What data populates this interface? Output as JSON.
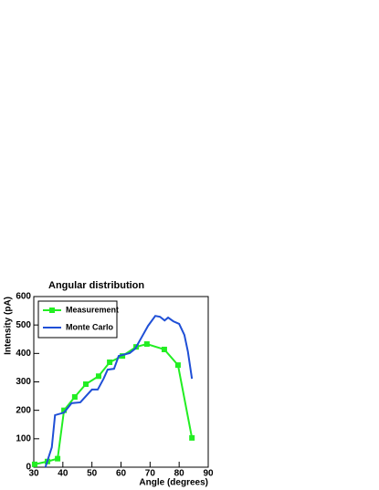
{
  "chart_data": {
    "type": "line",
    "title": "Angular distribution",
    "x_label": "Angle (degrees)",
    "y_label": "Intensity (pA)",
    "xlim": [
      30,
      90
    ],
    "xticks": [
      30,
      40,
      50,
      60,
      70,
      80,
      90
    ],
    "ylim": [
      0,
      600
    ],
    "yticks": [
      0,
      100,
      200,
      300,
      400,
      500,
      600
    ],
    "legend": "top-left",
    "series": [
      {
        "name": "Measurement",
        "color": "#22ee22",
        "marker": "square",
        "x": [
          30.3,
          34.7,
          38.2,
          40.4,
          44.1,
          47.9,
          52.3,
          56.1,
          60.5,
          65.2,
          68.9,
          74.9,
          79.6,
          84.4
        ],
        "values": [
          10,
          20,
          30,
          200,
          247,
          292,
          320,
          369,
          391,
          423,
          433,
          414,
          359,
          103
        ]
      },
      {
        "name": "Monte Carlo",
        "color": "#1f4fd6",
        "x": [
          34,
          36.2,
          37.3,
          40.4,
          43,
          46,
          50,
          52,
          54,
          55.4,
          57.6,
          59.2,
          63,
          64.9,
          67,
          69.3,
          71.8,
          73.4,
          75,
          76.2,
          78,
          80,
          81.8,
          83,
          84.4
        ],
        "values": [
          0,
          70,
          183,
          192,
          225,
          228,
          273,
          273,
          311,
          343,
          346,
          391,
          401,
          417,
          455,
          497,
          532,
          529,
          516,
          526,
          513,
          504,
          465,
          407,
          311
        ]
      }
    ]
  }
}
